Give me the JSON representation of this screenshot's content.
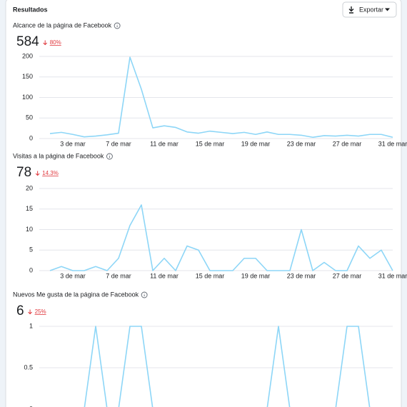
{
  "header": {
    "title": "Resultados",
    "button": "Exportar"
  },
  "chart_data": [
    {
      "type": "line",
      "title": "Alcance de la página de Facebook",
      "total": 584,
      "change": "80%",
      "categories": [
        null,
        null,
        "3 de mar",
        null,
        null,
        null,
        "7 de mar",
        null,
        null,
        null,
        "11 de mar",
        null,
        null,
        null,
        "15 de mar",
        null,
        null,
        null,
        "19 de mar",
        null,
        null,
        null,
        "23 de mar",
        null,
        null,
        null,
        "27 de mar",
        null,
        null,
        null,
        "31 de mar"
      ],
      "values": [
        12,
        15,
        10,
        4,
        6,
        9,
        13,
        198,
        120,
        26,
        31,
        27,
        16,
        13,
        18,
        15,
        12,
        15,
        10,
        16,
        10,
        10,
        8,
        3,
        7,
        6,
        8,
        6,
        10,
        10,
        3
      ],
      "color": "#8dd6f7",
      "ylim": [
        0,
        200
      ],
      "yticks": [
        0,
        50,
        100,
        150,
        200
      ],
      "grid": true
    },
    {
      "type": "line",
      "title": "Visitas a la página de Facebook",
      "total": 78,
      "change": "14.3%",
      "categories": [
        null,
        null,
        "3 de mar",
        null,
        null,
        null,
        "7 de mar",
        null,
        null,
        null,
        "11 de mar",
        null,
        null,
        null,
        "15 de mar",
        null,
        null,
        null,
        "19 de mar",
        null,
        null,
        null,
        "23 de mar",
        null,
        null,
        null,
        "27 de mar",
        null,
        null,
        null,
        "31 de mar"
      ],
      "values": [
        0,
        1,
        0,
        0,
        1,
        0,
        3,
        11,
        16,
        0,
        3,
        0,
        6,
        5,
        0,
        0,
        0,
        3,
        3,
        0,
        0,
        0,
        10,
        0,
        2,
        0,
        0,
        6,
        3,
        5,
        0
      ],
      "color": "#8dd6f7",
      "ylim": [
        0,
        20
      ],
      "yticks": [
        0,
        5,
        10,
        15,
        20
      ],
      "grid": true
    },
    {
      "type": "line",
      "title": "Nuevos Me gusta de la página de Facebook",
      "total": 6,
      "change": "25%",
      "categories": [
        null,
        null,
        null,
        null,
        null,
        null,
        null,
        null,
        null,
        null,
        null,
        null,
        null,
        null,
        null,
        null,
        null,
        null,
        null,
        null,
        null,
        null,
        null,
        null,
        null,
        null,
        null,
        null,
        null,
        null,
        null
      ],
      "values": [
        0,
        0,
        0,
        0,
        1,
        0,
        0,
        1,
        1,
        0,
        0,
        0,
        0,
        0,
        0,
        0,
        0,
        0,
        0,
        0,
        1,
        0,
        0,
        0,
        0,
        0,
        1,
        1,
        0,
        0,
        0
      ],
      "color": "#8dd6f7",
      "ylim": [
        0,
        1
      ],
      "yticks": [
        0,
        0.5,
        1
      ],
      "grid": true
    }
  ]
}
